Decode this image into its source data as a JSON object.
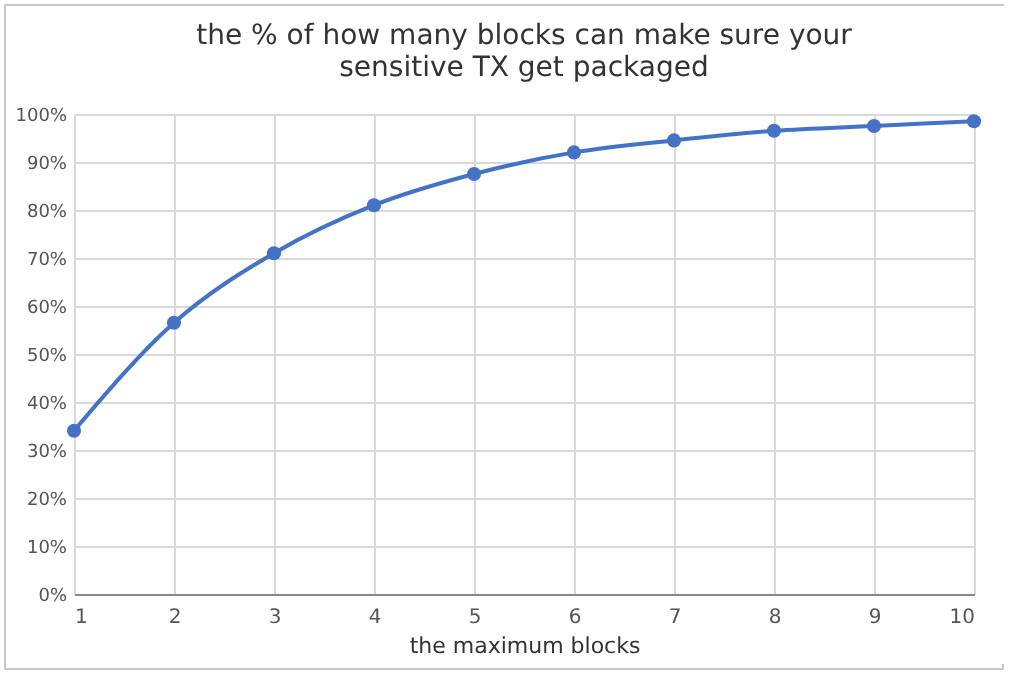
{
  "chart_data": {
    "type": "line",
    "title": "the % of how many blocks can make sure your\nsensitive TX get packaged",
    "xlabel": "the maximum blocks",
    "x": [
      1,
      2,
      3,
      4,
      5,
      6,
      7,
      8,
      9,
      10
    ],
    "series": [
      {
        "color": "#4472c4",
        "values": [
          34,
          56.5,
          71,
          81,
          87.5,
          92,
          94.5,
          96.5,
          97.5,
          98.5
        ]
      }
    ],
    "xlim": [
      1,
      10
    ],
    "xticks": [
      1,
      2,
      3,
      4,
      5,
      6,
      7,
      8,
      9,
      10
    ],
    "ylim": [
      0,
      100
    ],
    "yticks": [
      {
        "value": 0,
        "label": "0%"
      },
      {
        "value": 10,
        "label": "10%"
      },
      {
        "value": 20,
        "label": "20%"
      },
      {
        "value": 30,
        "label": "30%"
      },
      {
        "value": 40,
        "label": "40%"
      },
      {
        "value": 50,
        "label": "50%"
      },
      {
        "value": 60,
        "label": "60%"
      },
      {
        "value": 70,
        "label": "70%"
      },
      {
        "value": 80,
        "label": "80%"
      },
      {
        "value": 90,
        "label": "90%"
      },
      {
        "value": 100,
        "label": "100%"
      }
    ],
    "grid": true,
    "marker": "circle",
    "line_style": "solid"
  }
}
